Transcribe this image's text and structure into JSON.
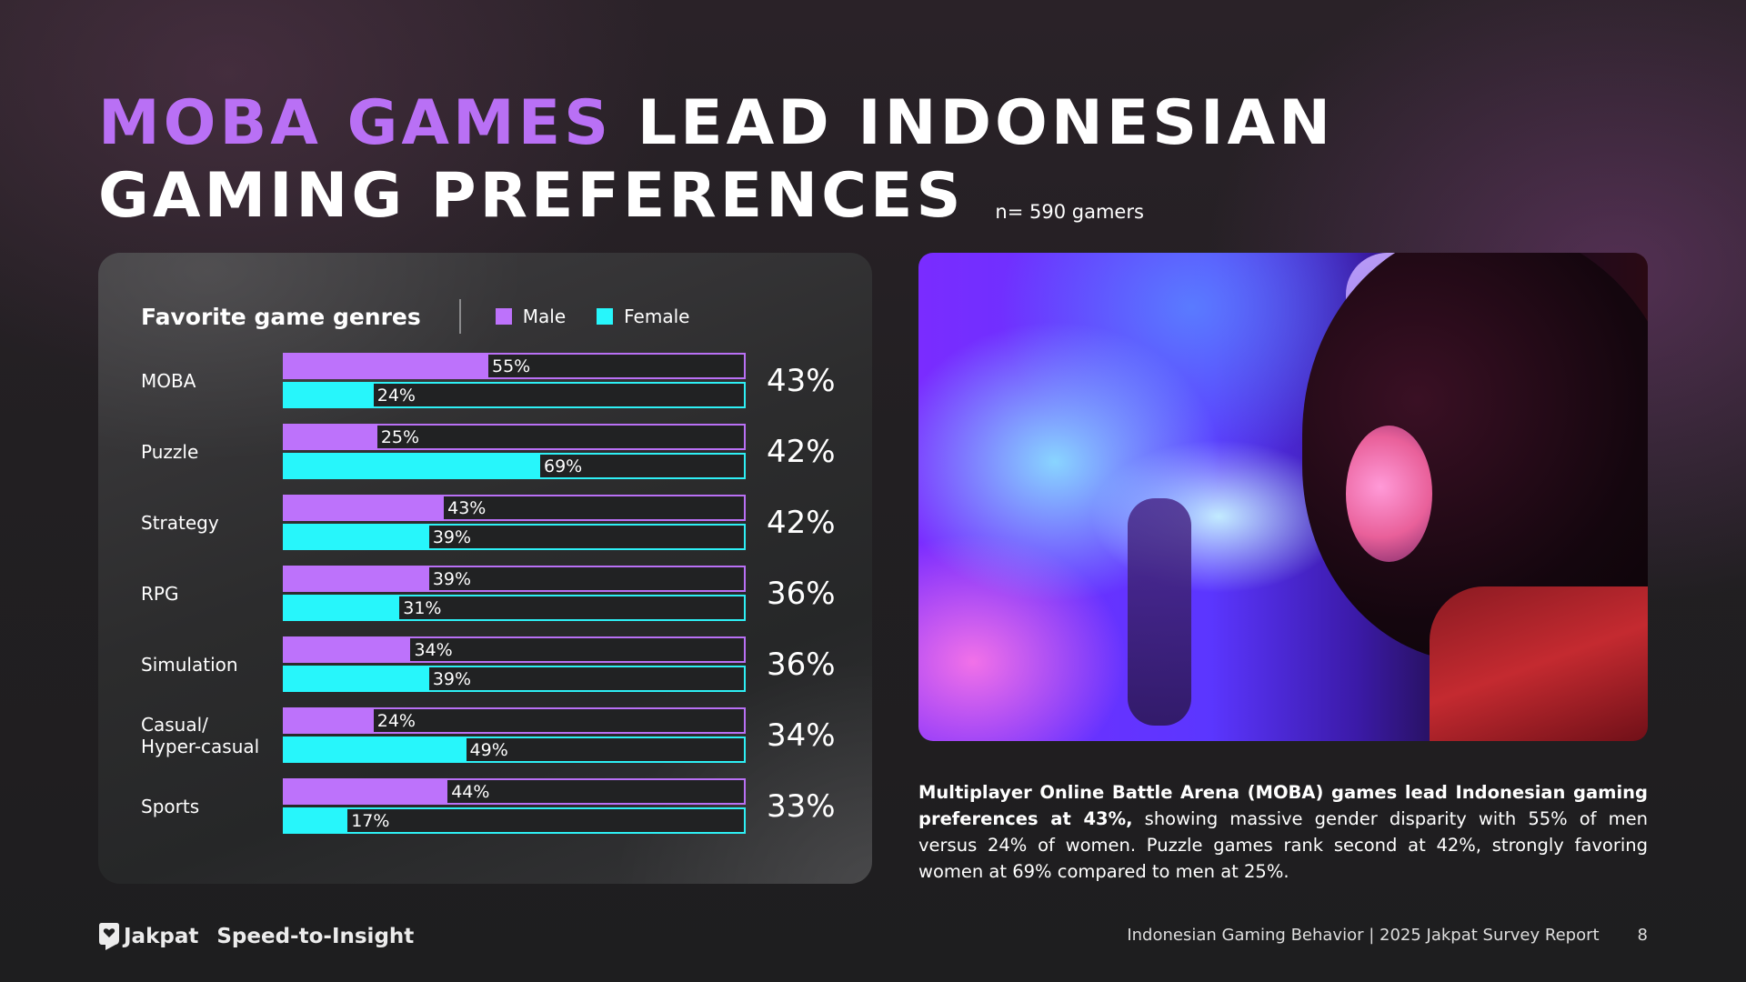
{
  "title": {
    "accent": "MOBA Games",
    "line1_rest": "Lead Indonesian",
    "line2": "Gaming Preferences",
    "sample": "n= 590 gamers"
  },
  "colors": {
    "male": "#bd72fb",
    "female": "#27f6fb",
    "accent": "#b970f5"
  },
  "chart_data": {
    "type": "bar",
    "orientation": "horizontal",
    "title": "Favorite game genres",
    "xlabel": "",
    "ylabel": "",
    "xlim": [
      0,
      124
    ],
    "grid": false,
    "legend": "top",
    "categories": [
      "MOBA",
      "Puzzle",
      "Strategy",
      "RPG",
      "Simulation",
      "Casual/\nHyper-casual",
      "Sports"
    ],
    "series": [
      {
        "name": "Male",
        "color": "#bd72fb",
        "values": [
          55,
          25,
          43,
          39,
          34,
          24,
          44
        ]
      },
      {
        "name": "Female",
        "color": "#27f6fb",
        "values": [
          24,
          69,
          39,
          31,
          39,
          49,
          17
        ]
      }
    ],
    "totals": [
      43,
      42,
      42,
      36,
      36,
      34,
      33
    ],
    "value_suffix": "%"
  },
  "photo": {
    "icon": "gamer-with-headphones-photo"
  },
  "summary": {
    "bold": "Multiplayer Online Battle Arena (MOBA) games lead Indonesian gaming preferences at 43%,",
    "rest": " showing massive gender disparity with 55% of men versus 24% of women. Puzzle games rank second at 42%, strongly favoring women at 69% compared to men at 25%."
  },
  "footer": {
    "logo_icon": "jakpat-heart-bubble-icon",
    "brand": "Jakpat",
    "tagline": "Speed-to-Insight",
    "report": "Indonesian Gaming Behavior | 2025 Jakpat Survey Report",
    "page": "8"
  }
}
